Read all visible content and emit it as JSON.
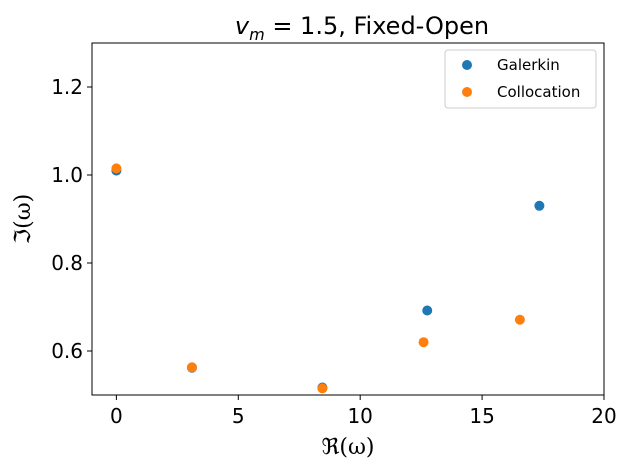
{
  "chart_data": {
    "type": "scatter",
    "title": "v_m = 1.5, Fixed-Open",
    "title_parts": {
      "var": "v",
      "sub": "m",
      "rest": " = 1.5, Fixed-Open"
    },
    "xlabel": "ℜ(ω)",
    "ylabel": "ℑ(ω)",
    "xlim": [
      -1,
      20
    ],
    "ylim": [
      0.5,
      1.3
    ],
    "xticks": [
      0,
      5,
      10,
      15,
      20
    ],
    "yticks": [
      0.6,
      0.8,
      1.0,
      1.2
    ],
    "xtick_labels": [
      "0",
      "5",
      "10",
      "15",
      "20"
    ],
    "ytick_labels": [
      "0.6",
      "0.8",
      "1.0",
      "1.2"
    ],
    "grid": false,
    "legend_position": "top-right",
    "series": [
      {
        "name": "Galerkin",
        "color": "#1f77b4",
        "points": [
          {
            "x": 0.0,
            "y": 1.01
          },
          {
            "x": 3.1,
            "y": 0.562
          },
          {
            "x": 8.45,
            "y": 0.517
          },
          {
            "x": 12.75,
            "y": 0.692
          },
          {
            "x": 17.35,
            "y": 0.93
          }
        ]
      },
      {
        "name": "Collocation",
        "color": "#ff7f0e",
        "points": [
          {
            "x": 0.0,
            "y": 1.015
          },
          {
            "x": 3.1,
            "y": 0.563
          },
          {
            "x": 8.45,
            "y": 0.515
          },
          {
            "x": 12.6,
            "y": 0.62
          },
          {
            "x": 16.55,
            "y": 0.671
          }
        ]
      }
    ]
  }
}
